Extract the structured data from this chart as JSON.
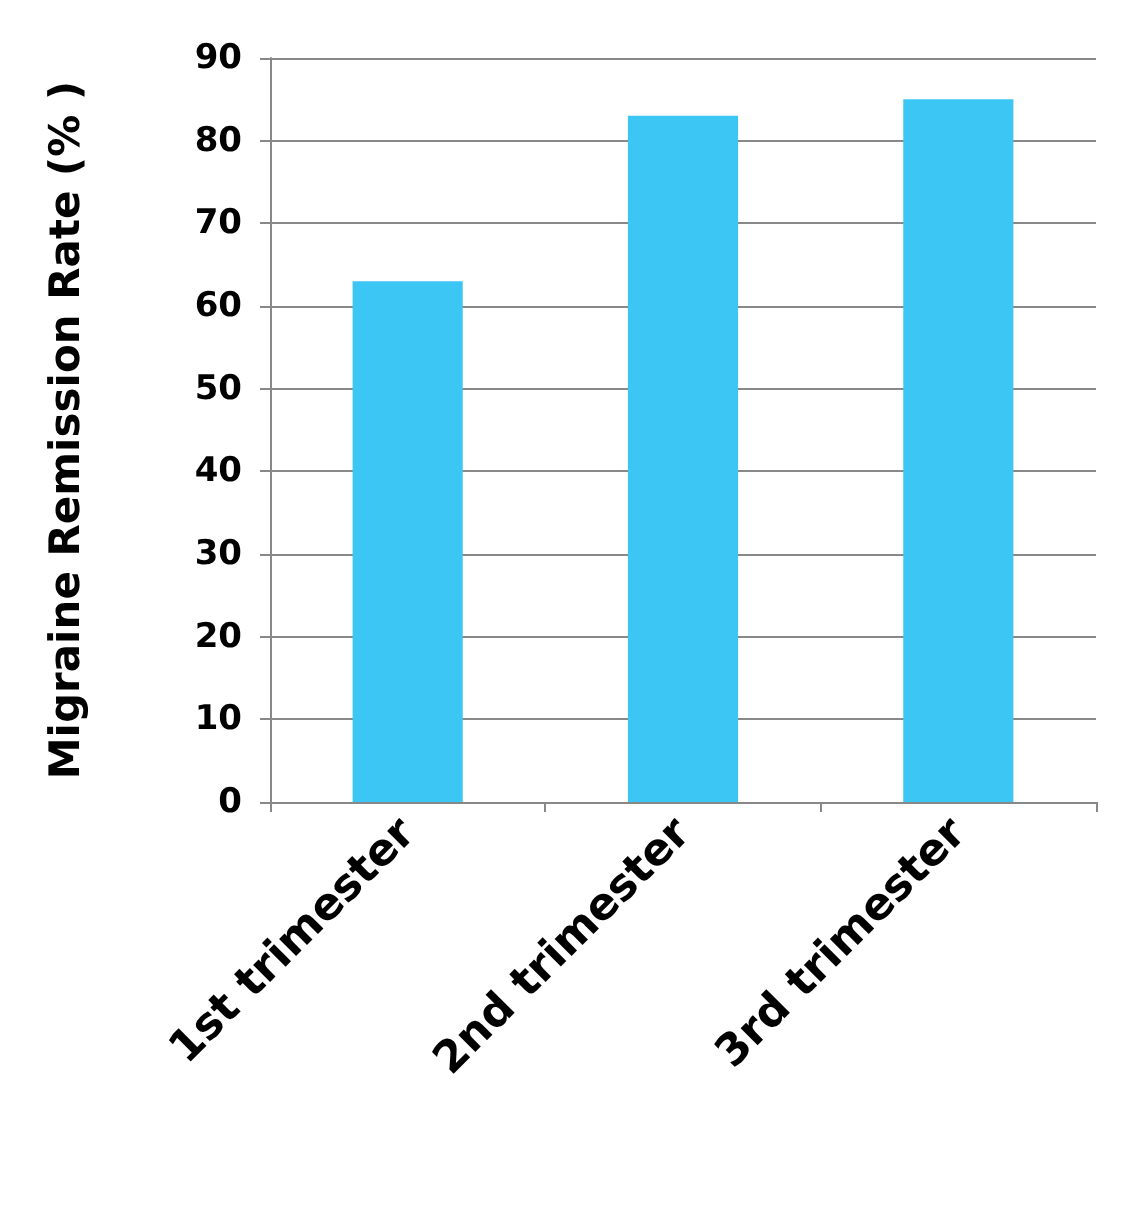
{
  "chart_data": {
    "type": "bar",
    "ylabel": "Migraine Remission Rate (% )",
    "categories": [
      "1st trimester",
      "2nd trimester",
      "3rd trimester"
    ],
    "values": [
      63,
      83,
      85
    ],
    "color": "#3cc6f4",
    "ylim": [
      0,
      90
    ],
    "yticks": [
      0,
      10,
      20,
      30,
      40,
      50,
      60,
      70,
      80,
      90
    ],
    "grid": "y"
  }
}
